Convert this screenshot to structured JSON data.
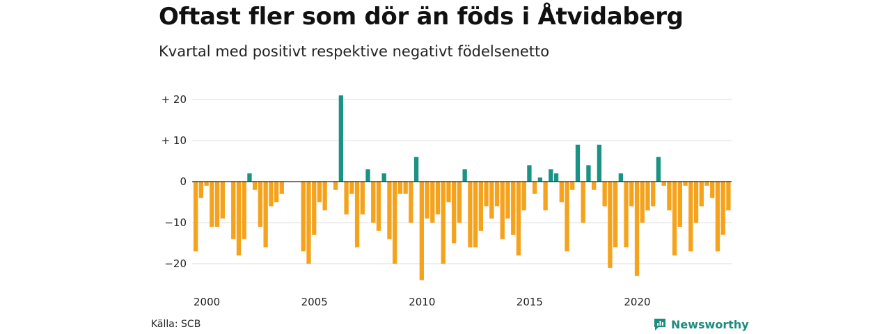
{
  "header": {
    "title": "Oftast fler som dör än föds i Åtvidaberg",
    "subtitle": "Kvartal med positivt respektive negativt födelsenetto"
  },
  "footer": {
    "source": "Källa: SCB",
    "brand": "Newsworthy"
  },
  "colors": {
    "positive": "#1a9385",
    "negative": "#f5a31d",
    "grid": "#dddddd",
    "zero_line": "#222222",
    "brand": "#1c8c7f"
  },
  "chart_data": {
    "type": "bar",
    "x_unit": "quarter",
    "start_year": 2000,
    "ylim": [
      -25,
      22
    ],
    "y_ticks": [
      {
        "value": 20,
        "label": "+ 20"
      },
      {
        "value": 10,
        "label": "+ 10"
      },
      {
        "value": 0,
        "label": "0"
      },
      {
        "value": -10,
        "label": "−10"
      },
      {
        "value": -20,
        "label": "−20"
      }
    ],
    "x_ticks": [
      {
        "year": 2000,
        "label": "2000"
      },
      {
        "year": 2005,
        "label": "2005"
      },
      {
        "year": 2010,
        "label": "2010"
      },
      {
        "year": 2015,
        "label": "2015"
      },
      {
        "year": 2020,
        "label": "2020"
      }
    ],
    "categories": [
      "2000K1",
      "2000K2",
      "2000K3",
      "2000K4",
      "2001K1",
      "2001K2",
      "2001K3",
      "2001K4",
      "2002K1",
      "2002K2",
      "2002K3",
      "2002K4",
      "2003K1",
      "2003K2",
      "2003K3",
      "2003K4",
      "2004K1",
      "2004K2",
      "2004K3",
      "2004K4",
      "2005K1",
      "2005K2",
      "2005K3",
      "2005K4",
      "2006K1",
      "2006K2",
      "2006K3",
      "2006K4",
      "2007K1",
      "2007K2",
      "2007K3",
      "2007K4",
      "2008K1",
      "2008K2",
      "2008K3",
      "2008K4",
      "2009K1",
      "2009K2",
      "2009K3",
      "2009K4",
      "2010K1",
      "2010K2",
      "2010K3",
      "2010K4",
      "2011K1",
      "2011K2",
      "2011K3",
      "2011K4",
      "2012K1",
      "2012K2",
      "2012K3",
      "2012K4",
      "2013K1",
      "2013K2",
      "2013K3",
      "2013K4",
      "2014K1",
      "2014K2",
      "2014K3",
      "2014K4",
      "2015K1",
      "2015K2",
      "2015K3",
      "2015K4",
      "2016K1",
      "2016K2",
      "2016K3",
      "2016K4",
      "2017K1",
      "2017K2",
      "2017K3",
      "2017K4",
      "2018K1",
      "2018K2",
      "2018K3",
      "2018K4",
      "2019K1",
      "2019K2",
      "2019K3",
      "2019K4",
      "2020K1",
      "2020K2",
      "2020K3",
      "2020K4",
      "2021K1",
      "2021K2",
      "2021K3",
      "2021K4",
      "2022K1",
      "2022K2",
      "2022K3",
      "2022K4",
      "2023K1",
      "2023K2",
      "2023K3",
      "2023K4",
      "2024K1",
      "2024K2",
      "2024K3",
      "2024K4"
    ],
    "values": [
      -17,
      -4,
      -1,
      -11,
      -11,
      -9,
      0,
      -14,
      -18,
      -14,
      2,
      -2,
      -11,
      -16,
      -6,
      -5,
      -3,
      0,
      0,
      0,
      -17,
      -20,
      -13,
      -5,
      -7,
      0,
      -2,
      21,
      -8,
      -3,
      -16,
      -8,
      3,
      -10,
      -12,
      2,
      -14,
      -20,
      -3,
      -3,
      -10,
      6,
      -24,
      -9,
      -10,
      -8,
      -20,
      -5,
      -15,
      -10,
      3,
      -16,
      -16,
      -12,
      -6,
      -9,
      -6,
      -14,
      -9,
      -13,
      -18,
      -7,
      4,
      -3,
      1,
      -7,
      3,
      2,
      -5,
      -17,
      -2,
      9,
      -10,
      4,
      -2,
      9,
      -6,
      -21,
      -16,
      2,
      -16,
      -6,
      -23,
      -10,
      -7,
      -6,
      6,
      -1,
      -7,
      -18,
      -11,
      -1,
      -17,
      -10,
      -6,
      -1,
      -4,
      -17,
      -13,
      -7
    ]
  }
}
